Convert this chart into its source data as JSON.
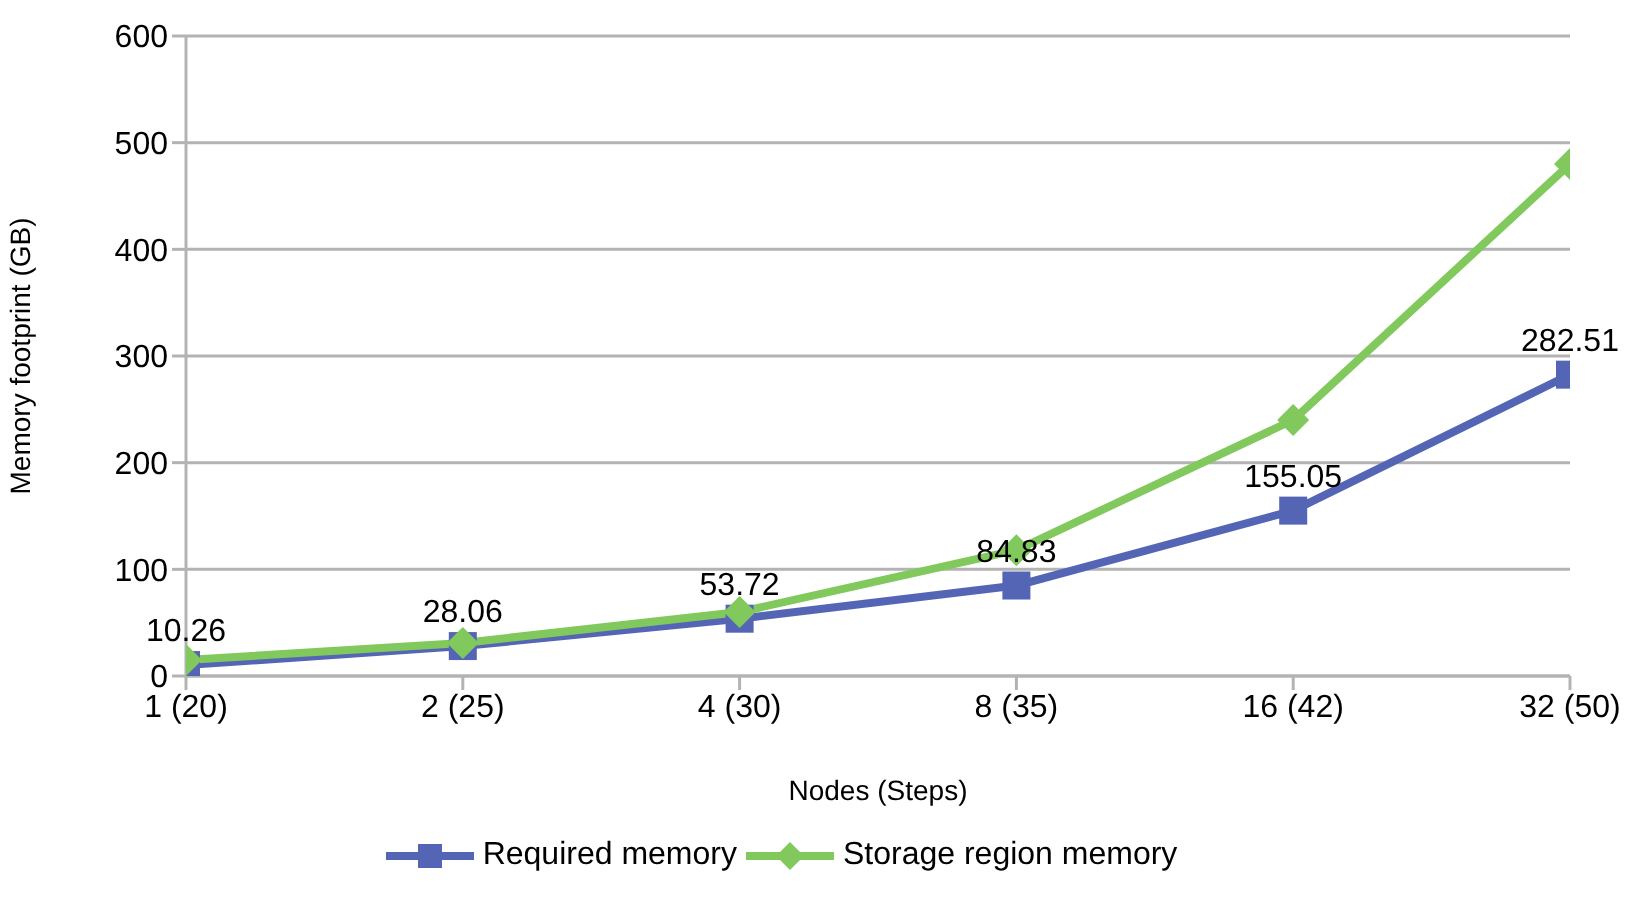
{
  "chart_data": {
    "type": "line",
    "xlabel": "Nodes (Steps)",
    "ylabel": "Memory footprint (GB)",
    "categories": [
      "1 (20)",
      "2 (25)",
      "4 (30)",
      "8 (35)",
      "16 (42)",
      "32 (50)"
    ],
    "series": [
      {
        "name": "Required memory",
        "color": "#5565b5",
        "marker": "square",
        "values": [
          10.26,
          28.06,
          53.72,
          84.83,
          155.05,
          282.51
        ],
        "value_labels": [
          "10.26",
          "28.06",
          "53.72",
          "84.83",
          "155.05",
          "282.51"
        ]
      },
      {
        "name": "Storage region memory",
        "color": "#81c95c",
        "marker": "diamond",
        "values": [
          15,
          31,
          60,
          118,
          240,
          480
        ]
      }
    ],
    "ylim": [
      0,
      600
    ],
    "yticks": [
      0,
      100,
      200,
      300,
      400,
      500,
      600
    ],
    "grid": "y",
    "legend": "bottom"
  }
}
